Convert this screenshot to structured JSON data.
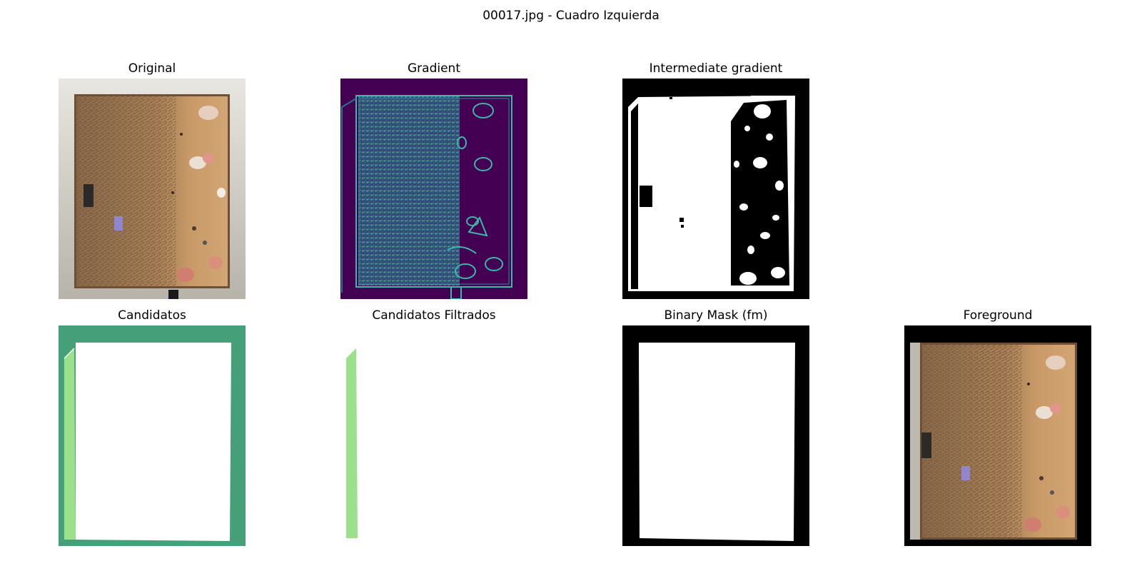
{
  "figure": {
    "title": "00017.jpg - Cuadro Izquierda"
  },
  "panels": {
    "original": {
      "title": "Original"
    },
    "gradient": {
      "title": "Gradient"
    },
    "intermediate_gradient": {
      "title": "Intermediate gradient"
    },
    "candidatos": {
      "title": "Candidatos"
    },
    "candidatos_filtrados": {
      "title": "Candidatos Filtrados"
    },
    "binary_mask": {
      "title": "Binary Mask (fm)"
    },
    "foreground": {
      "title": "Foreground"
    }
  },
  "colors": {
    "candidate_region": "#45a07a",
    "candidate_highlight": "#9be08a",
    "gradient_background": "#440154",
    "gradient_edges": "#3bb8a8",
    "painting_tone": "#c89a66",
    "mask_foreground": "#ffffff",
    "mask_background": "#000000"
  }
}
